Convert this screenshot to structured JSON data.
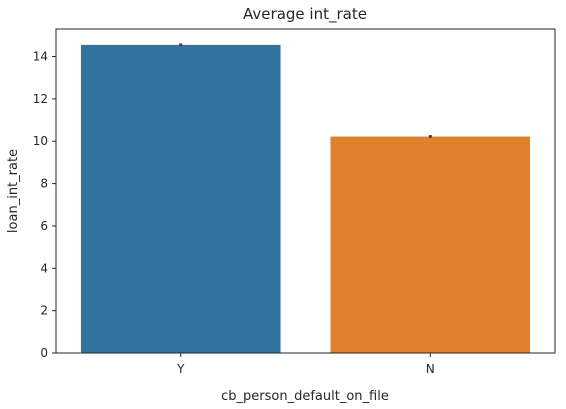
{
  "chart_data": {
    "type": "bar",
    "title": "Average int_rate",
    "xlabel": "cb_person_default_on_file",
    "ylabel": "loan_int_rate",
    "categories": [
      "Y",
      "N"
    ],
    "values": [
      14.55,
      10.22
    ],
    "error_bars": [
      [
        14.48,
        14.62
      ],
      [
        10.16,
        10.29
      ]
    ],
    "colors": [
      "#3274a1",
      "#e1812c"
    ],
    "error_bar_color": "#3f3f3f",
    "ylim": [
      0,
      15.3
    ],
    "yticks": [
      0,
      2,
      4,
      6,
      8,
      10,
      12,
      14
    ],
    "grid": false
  }
}
